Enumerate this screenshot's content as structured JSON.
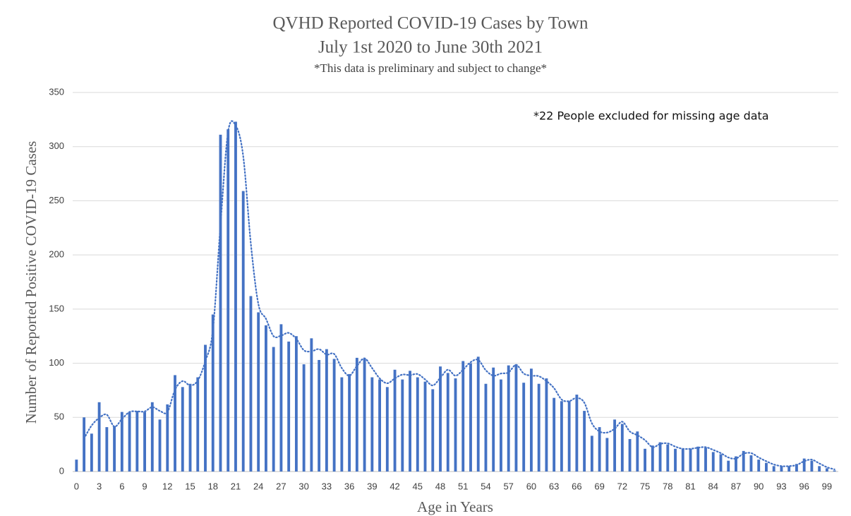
{
  "chart_data": {
    "type": "bar",
    "title": "QVHD Reported COVID-19 Cases by Town",
    "subtitle": "July 1st 2020 to June 30th 2021",
    "caption": "*This data is preliminary and subject to change*",
    "annotation": "*22 People excluded for missing age data",
    "x_label": "Age in Years",
    "y_label": "Number of Reported Positive  COVID-19 Cases",
    "categories": [
      "0",
      null,
      null,
      "3",
      null,
      null,
      "6",
      null,
      null,
      "9",
      null,
      null,
      "12",
      null,
      null,
      "15",
      null,
      null,
      "18",
      null,
      null,
      "21",
      null,
      null,
      "24",
      null,
      null,
      "27",
      null,
      null,
      "30",
      null,
      null,
      "33",
      null,
      null,
      "36",
      null,
      null,
      "39",
      null,
      null,
      "42",
      null,
      null,
      "45",
      null,
      null,
      "48",
      null,
      null,
      "51",
      null,
      null,
      "54",
      null,
      null,
      "57",
      null,
      null,
      "60",
      null,
      null,
      "63",
      null,
      null,
      "66",
      null,
      null,
      "69",
      null,
      null,
      "72",
      null,
      null,
      "75",
      null,
      null,
      "78",
      null,
      null,
      "81",
      null,
      null,
      "84",
      null,
      null,
      "87",
      null,
      null,
      "90",
      null,
      null,
      "93",
      null,
      null,
      "96",
      null,
      null,
      "99",
      null
    ],
    "values": [
      11,
      50,
      35,
      64,
      41,
      42,
      55,
      55,
      56,
      55,
      64,
      48,
      62,
      89,
      78,
      81,
      87,
      117,
      145,
      311,
      316,
      323,
      259,
      162,
      147,
      135,
      115,
      136,
      120,
      125,
      99,
      123,
      103,
      113,
      104,
      87,
      90,
      105,
      104,
      87,
      85,
      78,
      94,
      85,
      93,
      87,
      83,
      76,
      97,
      91,
      86,
      102,
      100,
      106,
      81,
      96,
      85,
      98,
      99,
      82,
      95,
      81,
      86,
      68,
      65,
      65,
      71,
      56,
      33,
      41,
      31,
      48,
      44,
      30,
      37,
      21,
      24,
      27,
      25,
      21,
      21,
      21,
      23,
      22,
      18,
      16,
      10,
      14,
      19,
      15,
      11,
      8,
      5,
      5,
      5,
      7,
      12,
      10,
      5,
      3,
      1
    ],
    "color": "#4472c4",
    "trendline": {
      "type": "moving_average",
      "period": 2
    },
    "ylim": [
      0,
      350
    ],
    "yticks": [
      0,
      50,
      100,
      150,
      200,
      250,
      300,
      350
    ],
    "grid": true
  }
}
